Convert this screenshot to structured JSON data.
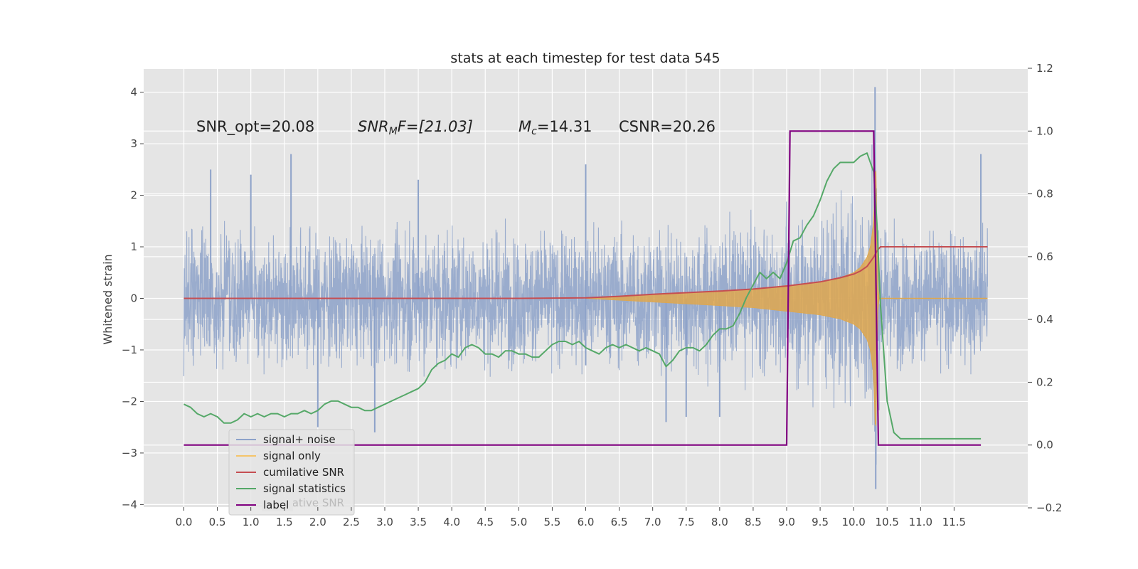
{
  "chart_data": {
    "type": "line",
    "title": "stats at each timestep for test data 545",
    "xlabel": "",
    "ylabel": "Whitened strain",
    "xlim": [
      -0.6,
      12.6
    ],
    "ylim": [
      -4.05,
      4.45
    ],
    "y2lim": [
      -0.2,
      1.2
    ],
    "x_ticks": [
      0.0,
      0.5,
      1.0,
      1.5,
      2.0,
      2.5,
      3.0,
      3.5,
      4.0,
      4.5,
      5.0,
      5.5,
      6.0,
      6.5,
      7.0,
      7.5,
      8.0,
      8.5,
      9.0,
      9.5,
      10.0,
      10.5,
      11.0,
      11.5
    ],
    "x_tick_labels": [
      "0.0",
      "0.5",
      "1.0",
      "1.5",
      "2.0",
      "2.5",
      "3.0",
      "3.5",
      "4.0",
      "4.5",
      "5.0",
      "5.5",
      "6.0",
      "6.5",
      "7.0",
      "7.5",
      "8.0",
      "8.5",
      "9.0",
      "9.5",
      "10.0",
      "10.5",
      "11.0",
      "11.5"
    ],
    "y_ticks": [
      4,
      3,
      2,
      1,
      0,
      -1,
      -2,
      -3,
      -4
    ],
    "y_tick_labels": [
      "4",
      "3",
      "2",
      "1",
      "0",
      "−1",
      "−2",
      "−3",
      "−4"
    ],
    "y2_ticks": [
      1.2,
      1.0,
      0.8,
      0.6,
      0.4,
      0.2,
      0.0,
      -0.2
    ],
    "y2_tick_labels": [
      "1.2",
      "1.0",
      "0.8",
      "0.6",
      "0.4",
      "0.2",
      "0.0",
      "−0.2"
    ],
    "grid": true,
    "legend_position": "lower-left",
    "annotations": {
      "snr_opt": "SNR_opt=20.08",
      "snr_mf_base": "SNR",
      "snr_mf_sub": "M",
      "snr_mf_rest": "F=[21.03]",
      "mc_base": "M",
      "mc_sub": "c",
      "mc_rest": "=14.31",
      "csnr": "CSNR=20.26"
    },
    "series": [
      {
        "name": "signal+ noise",
        "color": "#8da2c9",
        "axis": "left",
        "amplitude_envelope": [
          [
            0.0,
            1.55
          ],
          [
            6.0,
            1.55
          ],
          [
            9.0,
            1.65
          ],
          [
            10.2,
            2.3
          ],
          [
            10.32,
            3.6
          ],
          [
            10.35,
            3.2
          ],
          [
            10.4,
            1.55
          ],
          [
            12.0,
            1.55
          ]
        ],
        "peaks": [
          [
            0.4,
            2.5
          ],
          [
            1.0,
            2.4
          ],
          [
            1.6,
            2.8
          ],
          [
            2.0,
            -2.5
          ],
          [
            2.85,
            -2.6
          ],
          [
            3.5,
            2.3
          ],
          [
            6.0,
            2.6
          ],
          [
            6.0,
            -1.3
          ],
          [
            7.2,
            -2.4
          ],
          [
            7.5,
            -2.3
          ],
          [
            8.0,
            -2.3
          ],
          [
            10.32,
            4.1
          ],
          [
            10.33,
            -3.7
          ],
          [
            11.9,
            2.8
          ]
        ]
      },
      {
        "name": "signal only",
        "color": "#dfa74d",
        "axis": "left",
        "envelope": [
          [
            6.0,
            0.0
          ],
          [
            7.0,
            0.07
          ],
          [
            8.0,
            0.14
          ],
          [
            8.5,
            0.18
          ],
          [
            9.0,
            0.25
          ],
          [
            9.5,
            0.32
          ],
          [
            9.8,
            0.4
          ],
          [
            10.0,
            0.5
          ],
          [
            10.1,
            0.6
          ],
          [
            10.2,
            0.8
          ],
          [
            10.25,
            1.0
          ],
          [
            10.3,
            1.5
          ],
          [
            10.33,
            2.9
          ],
          [
            10.36,
            0.3
          ],
          [
            10.38,
            0.0
          ],
          [
            12.0,
            0.0
          ]
        ]
      },
      {
        "name": "cumilative SNR",
        "color": "#c54e52",
        "axis": "left",
        "x": [
          0.0,
          5.0,
          6.0,
          6.5,
          7.0,
          7.5,
          8.0,
          8.5,
          9.0,
          9.5,
          9.8,
          10.0,
          10.1,
          10.2,
          10.3,
          10.35,
          10.4,
          12.0
        ],
        "values": [
          0.0,
          0.0,
          0.01,
          0.04,
          0.08,
          0.11,
          0.14,
          0.18,
          0.24,
          0.32,
          0.4,
          0.47,
          0.53,
          0.62,
          0.8,
          0.92,
          1.0,
          1.0
        ]
      },
      {
        "name": "signal statistics",
        "color": "#55a868",
        "axis": "right",
        "x": [
          0.0,
          0.1,
          0.2,
          0.3,
          0.4,
          0.5,
          0.6,
          0.7,
          0.8,
          0.9,
          1.0,
          1.1,
          1.2,
          1.3,
          1.4,
          1.5,
          1.6,
          1.7,
          1.8,
          1.9,
          2.0,
          2.1,
          2.2,
          2.3,
          2.4,
          2.5,
          2.6,
          2.7,
          2.8,
          2.9,
          3.0,
          3.1,
          3.2,
          3.3,
          3.4,
          3.5,
          3.6,
          3.7,
          3.8,
          3.9,
          4.0,
          4.1,
          4.2,
          4.3,
          4.4,
          4.5,
          4.6,
          4.7,
          4.8,
          4.9,
          5.0,
          5.1,
          5.2,
          5.3,
          5.4,
          5.5,
          5.6,
          5.7,
          5.8,
          5.9,
          6.0,
          6.1,
          6.2,
          6.3,
          6.4,
          6.5,
          6.6,
          6.7,
          6.8,
          6.9,
          7.0,
          7.1,
          7.2,
          7.3,
          7.4,
          7.5,
          7.6,
          7.7,
          7.8,
          7.9,
          8.0,
          8.1,
          8.2,
          8.3,
          8.4,
          8.5,
          8.6,
          8.7,
          8.8,
          8.9,
          9.0,
          9.1,
          9.2,
          9.3,
          9.4,
          9.5,
          9.6,
          9.7,
          9.8,
          9.9,
          10.0,
          10.1,
          10.2,
          10.3,
          10.35,
          10.4,
          10.5,
          10.6,
          10.7,
          10.8,
          10.9,
          11.0,
          11.2,
          11.4,
          11.6,
          11.8,
          11.9
        ],
        "values": [
          0.13,
          0.12,
          0.1,
          0.09,
          0.1,
          0.09,
          0.07,
          0.07,
          0.08,
          0.1,
          0.09,
          0.1,
          0.09,
          0.1,
          0.1,
          0.09,
          0.1,
          0.1,
          0.11,
          0.1,
          0.11,
          0.13,
          0.14,
          0.14,
          0.13,
          0.12,
          0.12,
          0.11,
          0.11,
          0.12,
          0.13,
          0.14,
          0.15,
          0.16,
          0.17,
          0.18,
          0.2,
          0.24,
          0.26,
          0.27,
          0.29,
          0.28,
          0.31,
          0.32,
          0.31,
          0.29,
          0.29,
          0.28,
          0.3,
          0.3,
          0.29,
          0.29,
          0.28,
          0.28,
          0.3,
          0.32,
          0.33,
          0.33,
          0.32,
          0.33,
          0.31,
          0.3,
          0.29,
          0.31,
          0.32,
          0.31,
          0.32,
          0.31,
          0.3,
          0.31,
          0.3,
          0.29,
          0.25,
          0.27,
          0.3,
          0.31,
          0.31,
          0.3,
          0.32,
          0.35,
          0.37,
          0.37,
          0.38,
          0.42,
          0.47,
          0.51,
          0.55,
          0.53,
          0.55,
          0.53,
          0.58,
          0.65,
          0.66,
          0.7,
          0.73,
          0.78,
          0.84,
          0.88,
          0.9,
          0.9,
          0.9,
          0.92,
          0.93,
          0.87,
          0.7,
          0.45,
          0.14,
          0.04,
          0.02,
          0.02,
          0.02,
          0.02,
          0.02,
          0.02,
          0.02,
          0.02,
          0.02
        ]
      },
      {
        "name": "label",
        "color": "#800080",
        "axis": "right",
        "x": [
          0.0,
          9.0,
          9.05,
          10.3,
          10.37,
          11.9
        ],
        "values": [
          0.0,
          0.0,
          1.0,
          1.0,
          0.0,
          0.0
        ]
      }
    ],
    "legend": [
      {
        "name": "signal+ noise",
        "color": "#8da2c9"
      },
      {
        "name": "signal only",
        "color": "#f5c46a"
      },
      {
        "name": "cumilative SNR",
        "color": "#c54e52"
      },
      {
        "name": "signal statistics",
        "color": "#55a868"
      },
      {
        "name": "label",
        "color": "#800080"
      }
    ],
    "legend_ghost_text": "cumilative SNR"
  }
}
